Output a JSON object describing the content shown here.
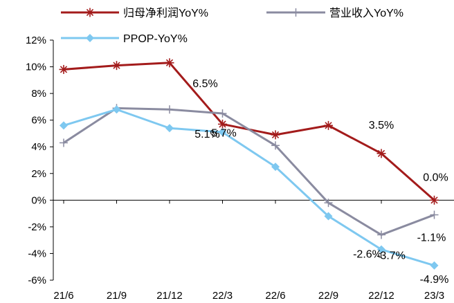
{
  "chart_data": {
    "type": "line",
    "categories": [
      "21/6",
      "21/9",
      "21/12",
      "22/3",
      "22/6",
      "22/9",
      "22/12",
      "23/3"
    ],
    "ylim": [
      -6,
      12
    ],
    "y_ticks": [
      12,
      10,
      8,
      6,
      4,
      2,
      0,
      -2,
      -4,
      -6
    ],
    "y_tick_labels": [
      "12%",
      "10%",
      "8%",
      "6%",
      "4%",
      "2%",
      "0%",
      "-2%",
      "-4%",
      "-6%"
    ],
    "grid": false,
    "legend_position": "top",
    "series": [
      {
        "name": "归母净利润YoY%",
        "color": "#A31B1B",
        "marker": "star",
        "values": [
          9.8,
          10.1,
          10.3,
          5.7,
          4.9,
          5.6,
          3.5,
          0.0
        ]
      },
      {
        "name": "营业收入YoY%",
        "color": "#8A8BA0",
        "marker": "plus",
        "values": [
          4.3,
          6.9,
          6.8,
          6.5,
          4.1,
          -0.2,
          -2.6,
          -1.1
        ]
      },
      {
        "name": "PPOP-YoY%",
        "color": "#7EC8F0",
        "marker": "diamond",
        "values": [
          5.6,
          6.8,
          5.4,
          5.1,
          2.5,
          -1.2,
          -3.7,
          -4.9
        ]
      }
    ],
    "annotations": [
      {
        "text": "6.5%",
        "category": "22/3",
        "value": 6.5
      },
      {
        "text": "5.1%",
        "category": "22/3",
        "value": 5.1
      },
      {
        "text": "5.7%",
        "category": "22/3",
        "value": 5.7
      },
      {
        "text": "3.5%",
        "category": "22/12",
        "value": 3.5
      },
      {
        "text": "0.0%",
        "category": "23/3",
        "value": 0.0
      },
      {
        "text": "-3.7%",
        "category": "22/12",
        "value": -3.7
      },
      {
        "text": "-2.6%",
        "category": "22/12",
        "value": -2.6
      },
      {
        "text": "-1.1%",
        "category": "23/3",
        "value": -1.1
      },
      {
        "text": "-4.9%",
        "category": "23/3",
        "value": -4.9
      }
    ]
  }
}
